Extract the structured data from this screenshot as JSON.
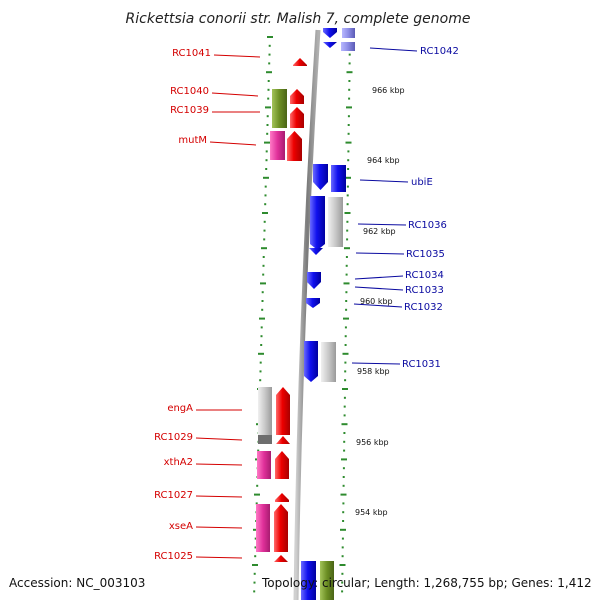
{
  "title": "Rickettsia conorii str. Malish 7, complete genome",
  "footer": {
    "accession": "Accession: NC_003103",
    "topology": "Topology: circular; Length: 1,268,755 bp; Genes: 1,412"
  },
  "colors": {
    "red": "#ee0000",
    "blue": "#1010ee",
    "olive": "#6b8e23",
    "pink": "#e0309a",
    "gray": "#c8c8c8",
    "darkgray": "#777777",
    "lavender": "#8c8ce6",
    "backbone": "#8a8a8a",
    "tick": "#2e8b2e"
  },
  "left_labels": [
    "RC1041",
    "RC1040",
    "RC1039",
    "mutM",
    "engA",
    "RC1029",
    "xthA2",
    "RC1027",
    "xseA",
    "RC1025"
  ],
  "right_labels": [
    "RC1042",
    "ubiE",
    "RC1036",
    "RC1035",
    "RC1034",
    "RC1033",
    "RC1032",
    "RC1031"
  ],
  "scale_labels": [
    "966 kbp",
    "964 kbp",
    "962 kbp",
    "960 kbp",
    "958 kbp",
    "956 kbp",
    "954 kbp"
  ]
}
